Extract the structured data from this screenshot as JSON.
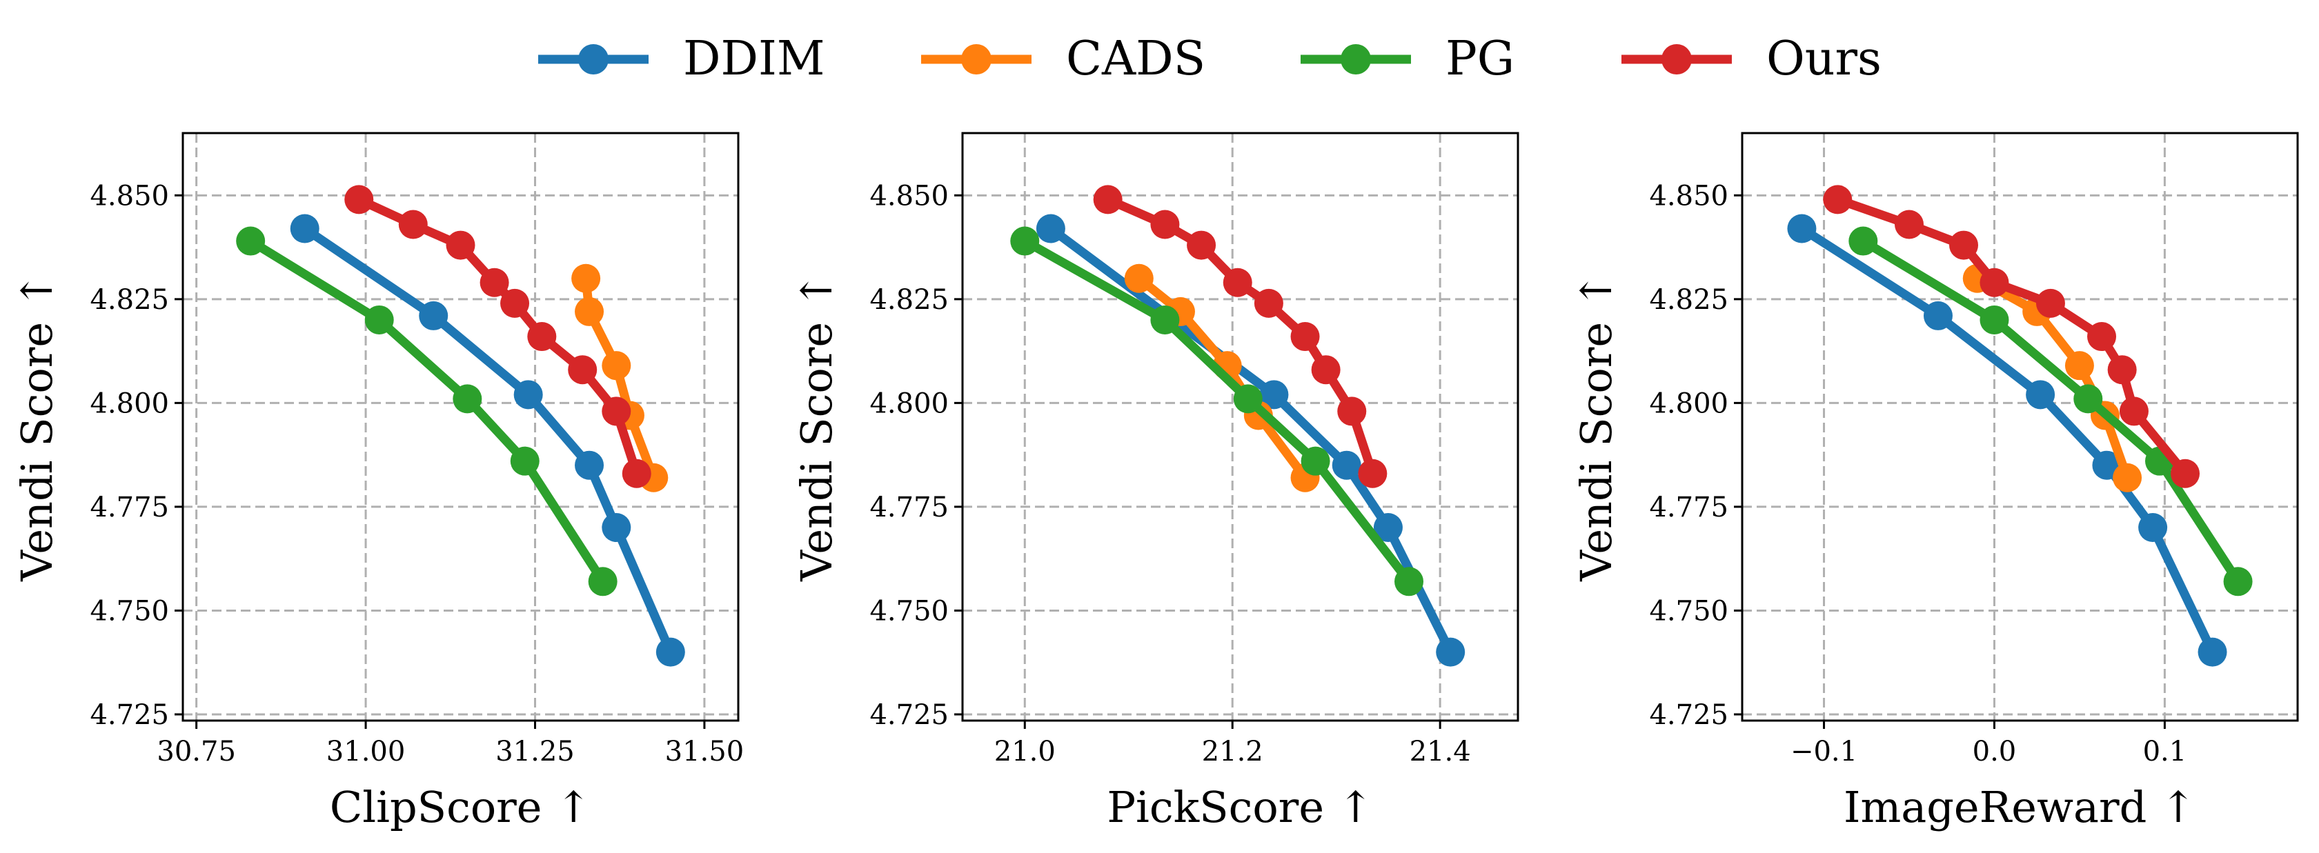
{
  "legend": [
    {
      "name": "DDIM",
      "color": "#1f77b4"
    },
    {
      "name": "CADS",
      "color": "#ff7f0e"
    },
    {
      "name": "PG",
      "color": "#2ca02c"
    },
    {
      "name": "Ours",
      "color": "#d62728"
    }
  ],
  "chart_data": [
    {
      "type": "line",
      "xlabel": "ClipScore ↑",
      "ylabel": "Vendi Score ↑",
      "xlim": [
        30.73,
        31.55
      ],
      "ylim": [
        4.7235,
        4.865
      ],
      "xticks": [
        30.75,
        31.0,
        31.25,
        31.5
      ],
      "xtick_labels": [
        "30.75",
        "31.00",
        "31.25",
        "31.50"
      ],
      "yticks": [
        4.725,
        4.75,
        4.775,
        4.8,
        4.825,
        4.85
      ],
      "ytick_labels": [
        "4.725",
        "4.750",
        "4.775",
        "4.800",
        "4.825",
        "4.850"
      ],
      "grid": true,
      "series": [
        {
          "name": "DDIM",
          "color": "#1f77b4",
          "x": [
            30.91,
            31.1,
            31.24,
            31.33,
            31.37,
            31.45
          ],
          "y": [
            4.842,
            4.821,
            4.802,
            4.785,
            4.77,
            4.74
          ]
        },
        {
          "name": "CADS",
          "color": "#ff7f0e",
          "x": [
            31.325,
            31.33,
            31.37,
            31.39,
            31.425
          ],
          "y": [
            4.83,
            4.822,
            4.809,
            4.797,
            4.782
          ]
        },
        {
          "name": "PG",
          "color": "#2ca02c",
          "x": [
            30.83,
            31.02,
            31.15,
            31.235,
            31.35
          ],
          "y": [
            4.839,
            4.82,
            4.801,
            4.786,
            4.757
          ]
        },
        {
          "name": "Ours",
          "color": "#d62728",
          "x": [
            30.99,
            31.07,
            31.14,
            31.19,
            31.22,
            31.26,
            31.32,
            31.37,
            31.4
          ],
          "y": [
            4.849,
            4.843,
            4.838,
            4.829,
            4.824,
            4.816,
            4.808,
            4.798,
            4.783
          ]
        }
      ]
    },
    {
      "type": "line",
      "xlabel": "PickScore ↑",
      "ylabel": "Vendi Score ↑",
      "xlim": [
        20.94,
        21.475
      ],
      "ylim": [
        4.7235,
        4.865
      ],
      "xticks": [
        21.0,
        21.2,
        21.4
      ],
      "xtick_labels": [
        "21.0",
        "21.2",
        "21.4"
      ],
      "yticks": [
        4.725,
        4.75,
        4.775,
        4.8,
        4.825,
        4.85
      ],
      "ytick_labels": [
        "4.725",
        "4.750",
        "4.775",
        "4.800",
        "4.825",
        "4.850"
      ],
      "grid": true,
      "series": [
        {
          "name": "DDIM",
          "color": "#1f77b4",
          "x": [
            21.025,
            21.24,
            21.31,
            21.35,
            21.41
          ],
          "y": [
            4.842,
            4.802,
            4.785,
            4.77,
            4.74
          ]
        },
        {
          "name": "CADS",
          "color": "#ff7f0e",
          "x": [
            21.11,
            21.15,
            21.195,
            21.225,
            21.27
          ],
          "y": [
            4.83,
            4.822,
            4.809,
            4.797,
            4.782
          ]
        },
        {
          "name": "PG",
          "color": "#2ca02c",
          "x": [
            21.0,
            21.135,
            21.215,
            21.28,
            21.37
          ],
          "y": [
            4.839,
            4.82,
            4.801,
            4.786,
            4.757
          ]
        },
        {
          "name": "Ours",
          "color": "#d62728",
          "x": [
            21.08,
            21.135,
            21.17,
            21.205,
            21.235,
            21.27,
            21.29,
            21.315,
            21.335
          ],
          "y": [
            4.849,
            4.843,
            4.838,
            4.829,
            4.824,
            4.816,
            4.808,
            4.798,
            4.783
          ]
        }
      ]
    },
    {
      "type": "line",
      "xlabel": "ImageReward ↑",
      "ylabel": "Vendi Score ↑",
      "xlim": [
        -0.148,
        0.178
      ],
      "ylim": [
        4.7235,
        4.865
      ],
      "xticks": [
        -0.1,
        0.0,
        0.1
      ],
      "xtick_labels": [
        "−0.1",
        "0.0",
        "0.1"
      ],
      "yticks": [
        4.725,
        4.75,
        4.775,
        4.8,
        4.825,
        4.85
      ],
      "ytick_labels": [
        "4.725",
        "4.750",
        "4.775",
        "4.800",
        "4.825",
        "4.850"
      ],
      "grid": true,
      "series": [
        {
          "name": "DDIM",
          "color": "#1f77b4",
          "x": [
            -0.113,
            -0.033,
            0.027,
            0.066,
            0.093,
            0.128
          ],
          "y": [
            4.842,
            4.821,
            4.802,
            4.785,
            4.77,
            4.74
          ]
        },
        {
          "name": "CADS",
          "color": "#ff7f0e",
          "x": [
            -0.01,
            0.025,
            0.05,
            0.065,
            0.078
          ],
          "y": [
            4.83,
            4.822,
            4.809,
            4.797,
            4.782
          ]
        },
        {
          "name": "PG",
          "color": "#2ca02c",
          "x": [
            -0.077,
            0.0,
            0.055,
            0.097,
            0.143
          ],
          "y": [
            4.839,
            4.82,
            4.801,
            4.786,
            4.757
          ]
        },
        {
          "name": "Ours",
          "color": "#d62728",
          "x": [
            -0.092,
            -0.05,
            -0.018,
            0.0,
            0.033,
            0.063,
            0.075,
            0.082,
            0.112
          ],
          "y": [
            4.849,
            4.843,
            4.838,
            4.829,
            4.824,
            4.816,
            4.808,
            4.798,
            4.783
          ]
        }
      ]
    }
  ]
}
